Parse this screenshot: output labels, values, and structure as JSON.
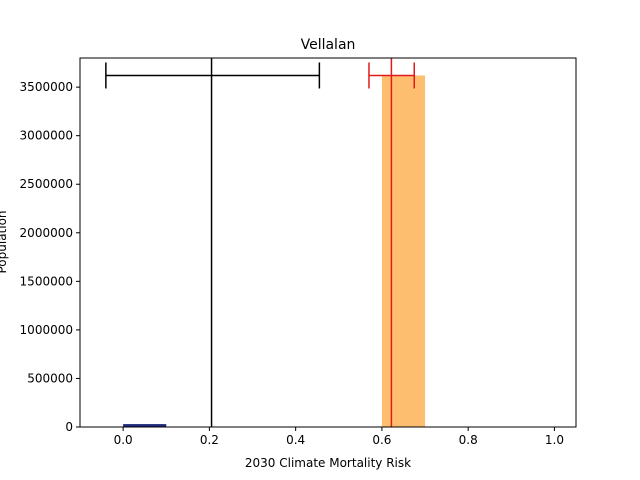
{
  "chart_data": {
    "type": "bar",
    "title": "Vellalan",
    "xlabel": "2030 Climate Mortality Risk",
    "ylabel": "Population",
    "xlim": [
      -0.1,
      1.05
    ],
    "ylim": [
      0,
      3800000
    ],
    "xticks": [
      0.0,
      0.2,
      0.4,
      0.6,
      0.8,
      1.0
    ],
    "xtick_labels": [
      "0.0",
      "0.2",
      "0.4",
      "0.6",
      "0.8",
      "1.0"
    ],
    "yticks": [
      0,
      500000,
      1000000,
      1500000,
      2000000,
      2500000,
      3000000,
      3500000
    ],
    "ytick_labels": [
      "0",
      "500000",
      "1000000",
      "1500000",
      "2000000",
      "2500000",
      "3000000",
      "3500000"
    ],
    "grid": false,
    "bars": [
      {
        "x_start": 0.0,
        "x_end": 0.1,
        "value": 30000,
        "color": "#1f2a7a"
      },
      {
        "x_start": 0.6,
        "x_end": 0.7,
        "value": 3620000,
        "color": "#fdbf6f"
      }
    ],
    "vertical_lines": [
      {
        "x": 0.205,
        "color": "#000000"
      },
      {
        "x": 0.622,
        "color": "#e31a1c"
      }
    ],
    "error_bars": [
      {
        "center": 0.205,
        "low": -0.04,
        "high": 0.455,
        "y": 3620000,
        "color": "#000000"
      },
      {
        "center": 0.622,
        "low": 0.57,
        "high": 0.675,
        "y": 3620000,
        "color": "#e31a1c"
      }
    ]
  }
}
